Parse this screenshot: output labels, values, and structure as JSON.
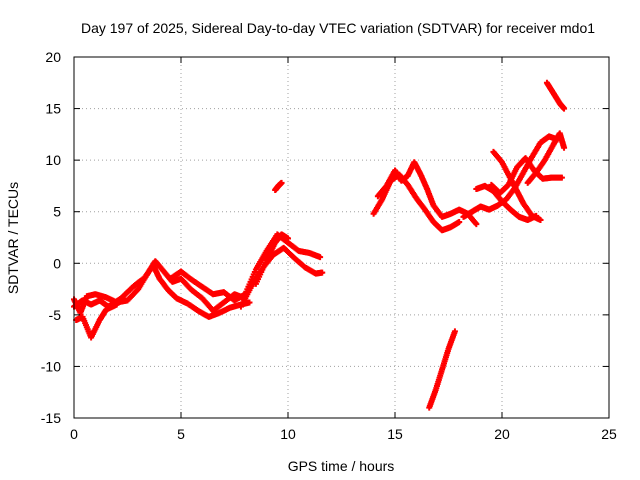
{
  "chart_data": {
    "type": "scatter",
    "title": "Day 197 of 2025, Sidereal Day-to-day VTEC variation (SDTVAR) for receiver mdo1",
    "xlabel": "GPS time / hours",
    "ylabel": "SDTVAR / TECUs",
    "xlim": [
      0,
      25
    ],
    "ylim": [
      -15,
      20
    ],
    "xticks": [
      0,
      5,
      10,
      15,
      20,
      25
    ],
    "yticks": [
      -15,
      -10,
      -5,
      0,
      5,
      10,
      15,
      20
    ],
    "grid": true,
    "marker": "plus",
    "color": "#ff0000",
    "series": [
      {
        "name": "arc-a",
        "points": [
          [
            0.0,
            -3.5
          ],
          [
            0.3,
            -4.8
          ],
          [
            0.6,
            -3.2
          ],
          [
            1.0,
            -3.0
          ],
          [
            1.5,
            -3.3
          ],
          [
            2.0,
            -3.8
          ],
          [
            2.5,
            -3.6
          ],
          [
            3.0,
            -2.5
          ],
          [
            3.5,
            -0.8
          ],
          [
            3.8,
            0.2
          ],
          [
            4.2,
            -0.8
          ],
          [
            4.6,
            -1.8
          ],
          [
            5.0,
            -1.5
          ],
          [
            5.5,
            -2.6
          ],
          [
            6.0,
            -3.4
          ],
          [
            6.5,
            -4.6
          ],
          [
            7.0,
            -3.8
          ],
          [
            7.5,
            -3.0
          ],
          [
            8.0,
            -3.4
          ]
        ]
      },
      {
        "name": "arc-b",
        "points": [
          [
            0.0,
            -4.2
          ],
          [
            0.4,
            -3.6
          ],
          [
            0.8,
            -4.0
          ],
          [
            1.2,
            -3.6
          ],
          [
            1.6,
            -4.2
          ],
          [
            2.2,
            -3.4
          ],
          [
            2.8,
            -2.2
          ],
          [
            3.3,
            -1.4
          ],
          [
            3.7,
            -0.2
          ],
          [
            4.0,
            -1.5
          ],
          [
            4.4,
            -2.6
          ],
          [
            4.8,
            -3.4
          ],
          [
            5.3,
            -3.9
          ],
          [
            5.8,
            -4.6
          ],
          [
            6.3,
            -5.2
          ],
          [
            6.8,
            -4.8
          ],
          [
            7.3,
            -4.3
          ],
          [
            7.8,
            -4.0
          ],
          [
            8.2,
            -3.8
          ]
        ]
      },
      {
        "name": "arc-c",
        "points": [
          [
            0.1,
            -5.5
          ],
          [
            0.4,
            -5.2
          ],
          [
            0.8,
            -7.2
          ],
          [
            1.2,
            -5.5
          ],
          [
            1.5,
            -4.5
          ],
          [
            2.0,
            -4.0
          ]
        ]
      },
      {
        "name": "arc-d",
        "points": [
          [
            4.5,
            -1.5
          ],
          [
            5.0,
            -0.8
          ],
          [
            5.5,
            -1.6
          ],
          [
            6.0,
            -2.3
          ],
          [
            6.5,
            -3.0
          ],
          [
            7.0,
            -2.8
          ],
          [
            7.5,
            -3.6
          ],
          [
            8.0,
            -3.0
          ],
          [
            8.5,
            -0.6
          ],
          [
            9.0,
            1.2
          ],
          [
            9.5,
            2.8
          ],
          [
            10.0,
            2.0
          ],
          [
            10.5,
            1.2
          ],
          [
            11.0,
            1.0
          ],
          [
            11.5,
            0.6
          ]
        ]
      },
      {
        "name": "arc-e",
        "points": [
          [
            7.8,
            -4.2
          ],
          [
            8.3,
            -2.2
          ],
          [
            8.8,
            -0.5
          ],
          [
            9.3,
            0.8
          ],
          [
            9.8,
            1.5
          ],
          [
            10.3,
            0.5
          ],
          [
            10.8,
            -0.4
          ],
          [
            11.3,
            -1.0
          ],
          [
            11.6,
            -0.9
          ]
        ]
      },
      {
        "name": "arc-f",
        "points": [
          [
            8.5,
            -2.0
          ],
          [
            9.0,
            0.3
          ],
          [
            9.4,
            2.0
          ],
          [
            9.7,
            2.8
          ],
          [
            10.0,
            2.4
          ]
        ]
      },
      {
        "name": "arc-g",
        "points": [
          [
            9.4,
            7.1
          ],
          [
            9.55,
            7.5
          ],
          [
            9.7,
            7.8
          ]
        ]
      },
      {
        "name": "arc-h",
        "points": [
          [
            14.0,
            4.8
          ],
          [
            14.4,
            6.2
          ],
          [
            14.8,
            8.0
          ],
          [
            15.2,
            8.6
          ],
          [
            15.6,
            7.6
          ],
          [
            16.0,
            6.3
          ],
          [
            16.4,
            5.2
          ],
          [
            16.8,
            4.0
          ],
          [
            17.2,
            3.2
          ],
          [
            17.6,
            3.5
          ],
          [
            18.0,
            4.0
          ]
        ]
      },
      {
        "name": "arc-i",
        "points": [
          [
            14.2,
            6.5
          ],
          [
            14.6,
            7.5
          ],
          [
            15.0,
            9.0
          ],
          [
            15.3,
            8.0
          ],
          [
            15.6,
            8.5
          ],
          [
            15.9,
            9.8
          ],
          [
            16.2,
            8.6
          ],
          [
            16.5,
            7.2
          ],
          [
            16.8,
            5.6
          ],
          [
            17.2,
            4.5
          ],
          [
            17.6,
            4.8
          ],
          [
            18.0,
            5.2
          ],
          [
            18.4,
            4.8
          ],
          [
            18.8,
            3.8
          ]
        ]
      },
      {
        "name": "arc-j",
        "points": [
          [
            18.2,
            4.5
          ],
          [
            18.6,
            5.0
          ],
          [
            19.0,
            5.5
          ],
          [
            19.4,
            5.2
          ],
          [
            19.8,
            5.6
          ],
          [
            20.2,
            6.2
          ],
          [
            20.6,
            7.3
          ],
          [
            21.0,
            8.8
          ],
          [
            21.4,
            10.3
          ],
          [
            21.8,
            11.7
          ],
          [
            22.2,
            12.3
          ],
          [
            22.6,
            12.0
          ]
        ]
      },
      {
        "name": "arc-k",
        "points": [
          [
            18.8,
            7.2
          ],
          [
            19.2,
            7.5
          ],
          [
            19.6,
            7.0
          ],
          [
            20.0,
            6.0
          ],
          [
            20.4,
            5.2
          ],
          [
            20.8,
            4.5
          ],
          [
            21.2,
            4.2
          ],
          [
            21.6,
            4.6
          ]
        ]
      },
      {
        "name": "arc-l",
        "points": [
          [
            19.5,
            7.6
          ],
          [
            19.9,
            6.8
          ],
          [
            20.3,
            7.6
          ],
          [
            20.7,
            9.3
          ],
          [
            21.1,
            10.2
          ],
          [
            21.5,
            9.0
          ],
          [
            21.9,
            8.2
          ],
          [
            22.3,
            8.3
          ],
          [
            22.8,
            8.3
          ]
        ]
      },
      {
        "name": "arc-m",
        "points": [
          [
            19.6,
            10.8
          ],
          [
            20.0,
            9.8
          ],
          [
            20.4,
            8.2
          ],
          [
            20.7,
            7.0
          ],
          [
            21.0,
            5.8
          ],
          [
            21.4,
            4.6
          ],
          [
            21.8,
            4.2
          ]
        ]
      },
      {
        "name": "arc-n",
        "points": [
          [
            21.2,
            7.8
          ],
          [
            21.6,
            8.8
          ],
          [
            22.0,
            10.0
          ],
          [
            22.4,
            11.5
          ],
          [
            22.7,
            12.6
          ],
          [
            22.9,
            11.2
          ]
        ]
      },
      {
        "name": "arc-o",
        "points": [
          [
            22.1,
            17.5
          ],
          [
            22.4,
            16.5
          ],
          [
            22.7,
            15.5
          ],
          [
            22.9,
            15.0
          ]
        ]
      },
      {
        "name": "arc-p",
        "points": [
          [
            16.6,
            -14.0
          ],
          [
            16.9,
            -12.3
          ],
          [
            17.2,
            -10.3
          ],
          [
            17.5,
            -8.3
          ],
          [
            17.8,
            -6.6
          ]
        ]
      }
    ]
  }
}
